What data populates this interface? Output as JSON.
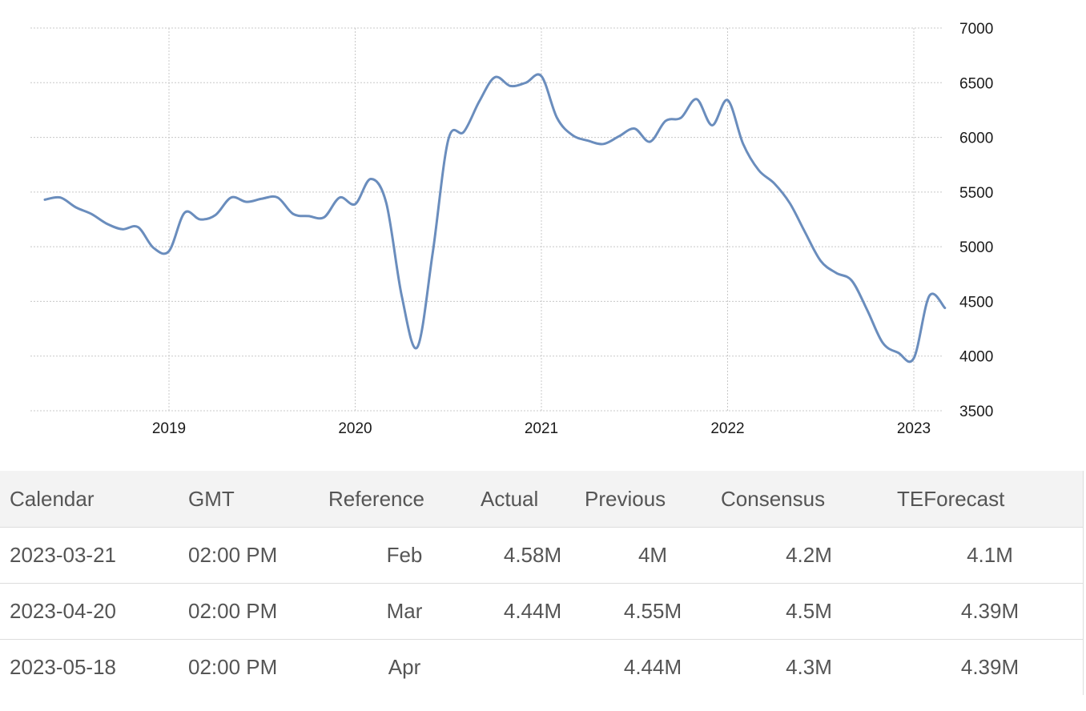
{
  "chart_data": {
    "type": "line",
    "ylim": [
      3500,
      7000
    ],
    "y_ticks": [
      3500,
      4000,
      4500,
      5000,
      5500,
      6000,
      6500,
      7000
    ],
    "x_ticks": [
      "2019",
      "2020",
      "2021",
      "2022",
      "2023"
    ],
    "grid": true,
    "series": [
      {
        "color": "#6a8dbd",
        "x": [
          "2018-05",
          "2018-06",
          "2018-07",
          "2018-08",
          "2018-09",
          "2018-10",
          "2018-11",
          "2018-12",
          "2019-01",
          "2019-02",
          "2019-03",
          "2019-04",
          "2019-05",
          "2019-06",
          "2019-07",
          "2019-08",
          "2019-09",
          "2019-10",
          "2019-11",
          "2019-12",
          "2020-01",
          "2020-02",
          "2020-03",
          "2020-04",
          "2020-05",
          "2020-06",
          "2020-07",
          "2020-08",
          "2020-09",
          "2020-10",
          "2020-11",
          "2020-12",
          "2021-01",
          "2021-02",
          "2021-03",
          "2021-04",
          "2021-05",
          "2021-06",
          "2021-07",
          "2021-08",
          "2021-09",
          "2021-10",
          "2021-11",
          "2021-12",
          "2022-01",
          "2022-02",
          "2022-03",
          "2022-04",
          "2022-05",
          "2022-06",
          "2022-07",
          "2022-08",
          "2022-09",
          "2022-10",
          "2022-11",
          "2022-12",
          "2023-01",
          "2023-02",
          "2023-03"
        ],
        "values": [
          5430,
          5450,
          5360,
          5300,
          5210,
          5160,
          5180,
          4990,
          4960,
          5310,
          5250,
          5290,
          5450,
          5410,
          5440,
          5450,
          5300,
          5280,
          5270,
          5450,
          5390,
          5620,
          5400,
          4550,
          4080,
          4950,
          5980,
          6050,
          6330,
          6550,
          6470,
          6500,
          6560,
          6180,
          6020,
          5970,
          5940,
          6010,
          6080,
          5960,
          6150,
          6180,
          6350,
          6110,
          6340,
          5940,
          5700,
          5580,
          5400,
          5130,
          4870,
          4760,
          4690,
          4420,
          4120,
          4030,
          3980,
          4550,
          4440
        ]
      }
    ]
  },
  "calendar": {
    "headers": [
      "Calendar",
      "GMT",
      "Reference",
      "Actual",
      "Previous",
      "Consensus",
      "TEForecast"
    ],
    "rows": [
      {
        "calendar": "2023-03-21",
        "gmt": "02:00 PM",
        "reference": "Feb",
        "actual": "4.58M",
        "previous": "4M",
        "consensus": "4.2M",
        "teforecast": "4.1M"
      },
      {
        "calendar": "2023-04-20",
        "gmt": "02:00 PM",
        "reference": "Mar",
        "actual": "4.44M",
        "previous": "4.55M",
        "consensus": "4.5M",
        "teforecast": "4.39M"
      },
      {
        "calendar": "2023-05-18",
        "gmt": "02:00 PM",
        "reference": "Apr",
        "actual": "",
        "previous": "4.44M",
        "consensus": "4.3M",
        "teforecast": "4.39M"
      }
    ]
  }
}
